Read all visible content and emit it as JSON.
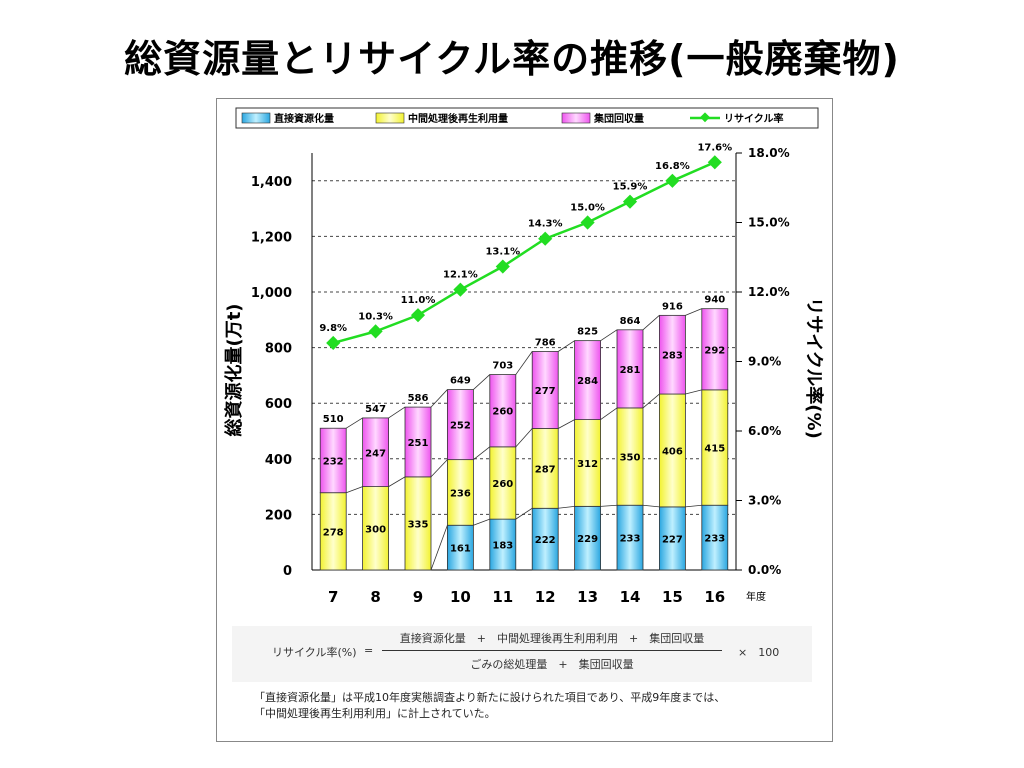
{
  "title": "総資源量とリサイクル率の推移(一般廃棄物)",
  "chart_data": {
    "type": "bar",
    "categories": [
      "7",
      "8",
      "9",
      "10",
      "11",
      "12",
      "13",
      "14",
      "15",
      "16"
    ],
    "x_unit": "年度",
    "series": [
      {
        "name": "直接資源化量",
        "values": [
          0,
          0,
          0,
          161,
          183,
          222,
          229,
          233,
          227,
          233
        ],
        "color": "#5bc8ef"
      },
      {
        "name": "中間処理後再生利用量",
        "values": [
          278,
          300,
          335,
          236,
          260,
          287,
          312,
          350,
          406,
          415
        ],
        "color": "#ffff66"
      },
      {
        "name": "集団回収量",
        "values": [
          232,
          247,
          251,
          252,
          260,
          277,
          284,
          281,
          283,
          292
        ],
        "color": "#ff66ff"
      }
    ],
    "totals": [
      510,
      547,
      586,
      649,
      703,
      786,
      825,
      864,
      916,
      940
    ],
    "line": {
      "name": "リサイクル率",
      "values": [
        9.8,
        10.3,
        11.0,
        12.1,
        13.1,
        14.3,
        15.0,
        15.9,
        16.8,
        17.6
      ],
      "labels": [
        "9.8%",
        "10.3%",
        "11.0%",
        "12.1%",
        "13.1%",
        "14.3%",
        "15.0%",
        "15.9%",
        "16.8%",
        "17.6%"
      ],
      "color": "#22dd22"
    },
    "ylabel_left": "総資源化量(万t)",
    "ylabel_right": "リサイクル率(%)",
    "ylim_left": [
      0,
      1500
    ],
    "yticks_left": [
      "0",
      "200",
      "400",
      "600",
      "800",
      "1,000",
      "1,200",
      "1,400"
    ],
    "ylim_right": [
      0,
      18
    ],
    "yticks_right": [
      "0.0%",
      "3.0%",
      "6.0%",
      "9.0%",
      "12.0%",
      "15.0%",
      "18.0%"
    ],
    "grid": "dashed horizontal",
    "legend": "top"
  },
  "formula": {
    "lhs": "リサイクル率(%)",
    "eq": "=",
    "numerator": "直接資源化量　+　中間処理後再生利用利用　+　集団回収量",
    "denominator": "ごみの総処理量　+　集団回収量",
    "multiplier": "×　100"
  },
  "note": {
    "line1": "「直接資源化量」は平成10年度実態調査より新たに設けられた項目であり、平成9年度までは、",
    "line2": "「中間処理後再生利用利用」に計上されていた。"
  }
}
